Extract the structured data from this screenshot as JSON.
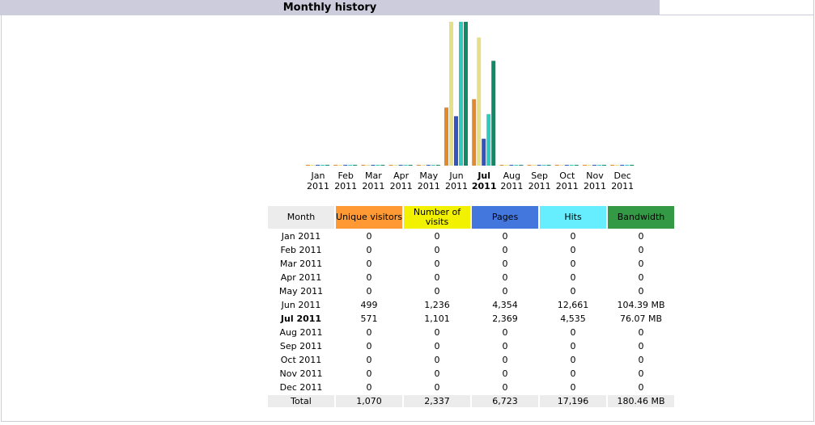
{
  "title": "Monthly history",
  "chart_data": {
    "type": "bar",
    "categories": [
      "Jan 2011",
      "Feb 2011",
      "Mar 2011",
      "Apr 2011",
      "May 2011",
      "Jun 2011",
      "Jul 2011",
      "Aug 2011",
      "Sep 2011",
      "Oct 2011",
      "Nov 2011",
      "Dec 2011"
    ],
    "series": [
      {
        "color": "#e08a30",
        "values": [
          0,
          0,
          0,
          0,
          0,
          499,
          571,
          0,
          0,
          0,
          0,
          0
        ]
      },
      {
        "color": "#e6df8a",
        "values": [
          0,
          0,
          0,
          0,
          0,
          1236,
          1101,
          0,
          0,
          0,
          0,
          0
        ]
      },
      {
        "color": "#3355bb",
        "values": [
          0,
          0,
          0,
          0,
          0,
          4354,
          2369,
          0,
          0,
          0,
          0,
          0
        ]
      },
      {
        "color": "#33c8bb",
        "values": [
          0,
          0,
          0,
          0,
          0,
          12661,
          4535,
          0,
          0,
          0,
          0,
          0
        ]
      },
      {
        "color": "#118866",
        "values": [
          0,
          0,
          0,
          0,
          0,
          104.39,
          76.07,
          0,
          0,
          0,
          0,
          0
        ]
      }
    ]
  },
  "table": {
    "header": [
      "Month",
      "Unique visitors",
      "Number of visits",
      "Pages",
      "Hits",
      "Bandwidth"
    ],
    "rows": [
      [
        "Jan 2011",
        "0",
        "0",
        "0",
        "0",
        "0"
      ],
      [
        "Feb 2011",
        "0",
        "0",
        "0",
        "0",
        "0"
      ],
      [
        "Mar 2011",
        "0",
        "0",
        "0",
        "0",
        "0"
      ],
      [
        "Apr 2011",
        "0",
        "0",
        "0",
        "0",
        "0"
      ],
      [
        "May 2011",
        "0",
        "0",
        "0",
        "0",
        "0"
      ],
      [
        "Jun 2011",
        "499",
        "1,236",
        "4,354",
        "12,661",
        "104.39 MB"
      ],
      [
        "Jul 2011",
        "571",
        "1,101",
        "2,369",
        "4,535",
        "76.07 MB"
      ],
      [
        "Aug 2011",
        "0",
        "0",
        "0",
        "0",
        "0"
      ],
      [
        "Sep 2011",
        "0",
        "0",
        "0",
        "0",
        "0"
      ],
      [
        "Oct 2011",
        "0",
        "0",
        "0",
        "0",
        "0"
      ],
      [
        "Nov 2011",
        "0",
        "0",
        "0",
        "0",
        "0"
      ],
      [
        "Dec 2011",
        "0",
        "0",
        "0",
        "0",
        "0"
      ]
    ],
    "total": [
      "Total",
      "1,070",
      "2,337",
      "6,723",
      "17,196",
      "180.46 MB"
    ]
  }
}
